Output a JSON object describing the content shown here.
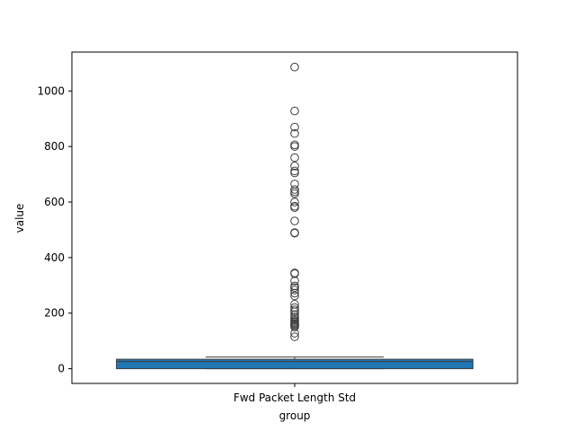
{
  "chart_data": {
    "type": "box",
    "title": "",
    "xlabel": "group",
    "ylabel": "value",
    "categories": [
      "Fwd Packet Length Std"
    ],
    "ylim": [
      -53,
      1140
    ],
    "yticks": [
      0,
      200,
      400,
      600,
      800,
      1000
    ],
    "grid": false,
    "box": {
      "whisker_low": 0,
      "q1": 0,
      "median": 26,
      "q3": 34,
      "whisker_high": 42,
      "fill_color": "#1f77b4"
    },
    "outliers": [
      1086,
      928,
      870,
      847,
      806,
      800,
      760,
      730,
      712,
      705,
      665,
      645,
      637,
      630,
      600,
      585,
      580,
      532,
      490,
      488,
      345,
      342,
      316,
      298,
      292,
      283,
      272,
      262,
      232,
      220,
      212,
      205,
      195,
      186,
      180,
      174,
      170,
      166,
      162,
      158,
      155,
      150,
      128,
      115
    ]
  }
}
